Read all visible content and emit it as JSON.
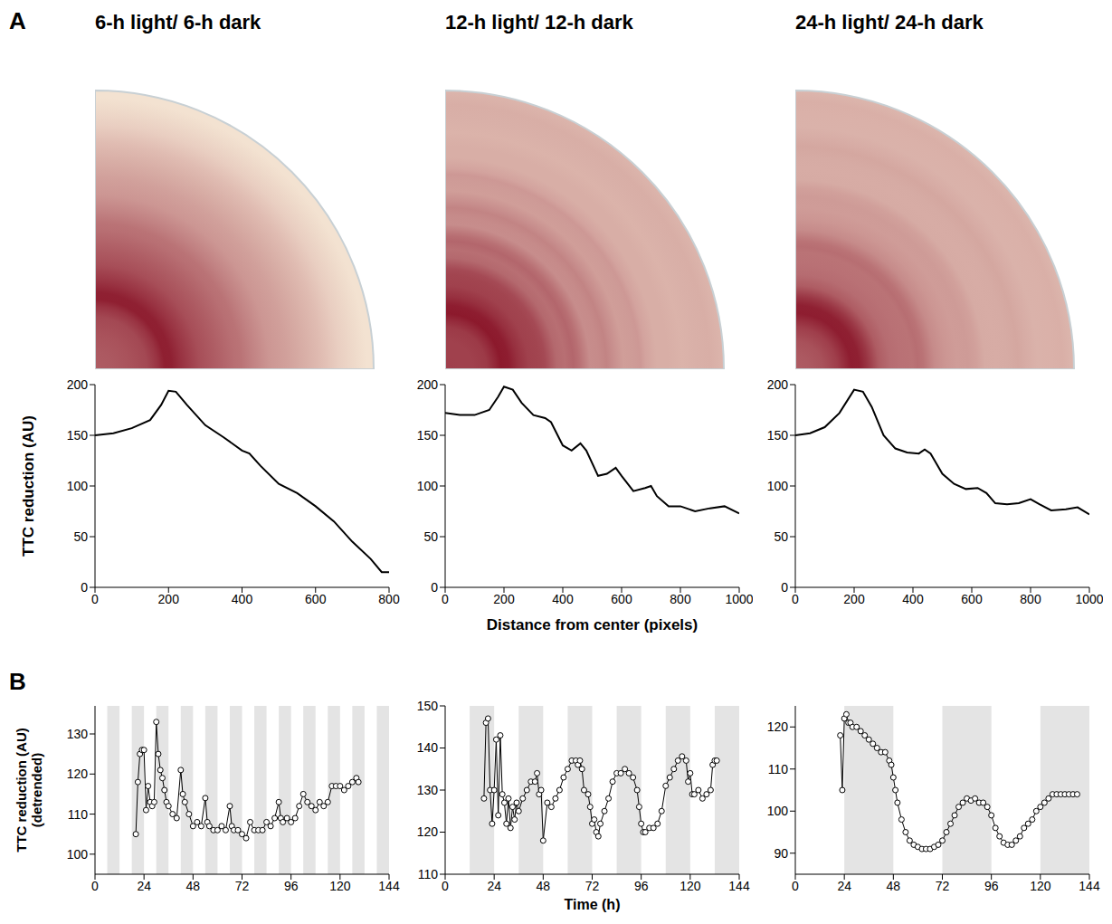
{
  "chart_data": [
    {
      "panel": "A",
      "type": "line",
      "title": "6-h light/ 6-h dark",
      "y_label": "TTC reduction (AU)",
      "xlim": [
        0,
        800
      ],
      "xticks": [
        0,
        200,
        400,
        600,
        800
      ],
      "ylim": [
        0,
        200
      ],
      "yticks": [
        0,
        50,
        100,
        150,
        200
      ],
      "series": [
        {
          "name": "6-h",
          "color": "#000000",
          "marker": "none",
          "line_style": "solid",
          "x": [
            0,
            50,
            100,
            150,
            180,
            200,
            220,
            250,
            300,
            350,
            400,
            420,
            450,
            500,
            550,
            600,
            650,
            700,
            750,
            780,
            800
          ],
          "values": [
            150,
            152,
            157,
            165,
            180,
            194,
            193,
            180,
            160,
            148,
            135,
            132,
            120,
            102,
            93,
            80,
            65,
            45,
            28,
            15,
            15
          ]
        }
      ]
    },
    {
      "panel": "A",
      "type": "line",
      "title": "12-h light/ 12-h dark",
      "x_label": "Distance from center (pixels)",
      "xlim": [
        0,
        1000
      ],
      "xticks": [
        0,
        200,
        400,
        600,
        800,
        1000
      ],
      "ylim": [
        0,
        200
      ],
      "yticks": [
        0,
        50,
        100,
        150,
        200
      ],
      "series": [
        {
          "name": "12-h",
          "color": "#000000",
          "marker": "none",
          "line_style": "solid",
          "x": [
            0,
            50,
            100,
            150,
            180,
            200,
            230,
            260,
            300,
            340,
            360,
            400,
            430,
            460,
            480,
            520,
            550,
            580,
            600,
            640,
            680,
            700,
            720,
            760,
            800,
            850,
            900,
            950,
            1000
          ],
          "values": [
            172,
            170,
            170,
            175,
            188,
            198,
            195,
            182,
            170,
            167,
            163,
            140,
            135,
            142,
            135,
            110,
            112,
            118,
            110,
            95,
            98,
            100,
            90,
            80,
            80,
            75,
            78,
            80,
            73
          ]
        }
      ]
    },
    {
      "panel": "A",
      "type": "line",
      "title": "24-h light/ 24-h dark",
      "xlim": [
        0,
        1000
      ],
      "xticks": [
        0,
        200,
        400,
        600,
        800,
        1000
      ],
      "ylim": [
        0,
        200
      ],
      "yticks": [
        0,
        50,
        100,
        150,
        200
      ],
      "series": [
        {
          "name": "24-h",
          "color": "#000000",
          "marker": "none",
          "line_style": "solid",
          "x": [
            0,
            50,
            100,
            150,
            200,
            230,
            260,
            300,
            340,
            380,
            420,
            440,
            460,
            500,
            540,
            580,
            620,
            650,
            680,
            720,
            760,
            800,
            830,
            870,
            920,
            960,
            1000
          ],
          "values": [
            150,
            152,
            158,
            172,
            195,
            193,
            178,
            150,
            137,
            133,
            132,
            136,
            132,
            112,
            102,
            97,
            98,
            93,
            83,
            82,
            83,
            87,
            82,
            76,
            77,
            79,
            72
          ]
        }
      ]
    },
    {
      "panel": "B",
      "type": "line",
      "y_label": [
        "TTC reduction (AU)",
        "(detrended)"
      ],
      "xlim": [
        0,
        144
      ],
      "xticks": [
        0,
        24,
        48,
        72,
        96,
        120,
        144
      ],
      "ylim": [
        95,
        137
      ],
      "yticks": [
        100,
        110,
        120,
        130
      ],
      "dark_periods": [
        [
          6,
          12
        ],
        [
          18,
          24
        ],
        [
          30,
          36
        ],
        [
          42,
          48
        ],
        [
          54,
          60
        ],
        [
          66,
          72
        ],
        [
          78,
          84
        ],
        [
          90,
          96
        ],
        [
          102,
          108
        ],
        [
          114,
          120
        ],
        [
          126,
          132
        ],
        [
          138,
          144
        ]
      ],
      "series": [
        {
          "name": "6-h",
          "color": "#000000",
          "marker": "o",
          "line_style": "solid",
          "x": [
            20,
            21,
            22,
            23,
            24,
            25,
            26,
            27,
            28,
            29,
            30,
            31,
            32,
            33,
            34,
            35,
            36,
            38,
            40,
            42,
            43,
            44,
            46,
            48,
            50,
            52,
            54,
            55,
            56,
            58,
            60,
            62,
            64,
            66,
            67,
            68,
            70,
            72,
            74,
            76,
            78,
            80,
            82,
            84,
            86,
            88,
            90,
            91,
            92,
            94,
            96,
            98,
            100,
            102,
            104,
            106,
            108,
            110,
            112,
            114,
            116,
            118,
            120,
            122,
            124,
            126,
            128,
            129
          ],
          "values": [
            105,
            118,
            125,
            126,
            126,
            111,
            117,
            113,
            112,
            113,
            133,
            125,
            121,
            119,
            116,
            113,
            112,
            110,
            109,
            121,
            115,
            113,
            110,
            107,
            108,
            107,
            114,
            108,
            107,
            106,
            106,
            107,
            106,
            112,
            107,
            106,
            106,
            105,
            104,
            108,
            106,
            106,
            106,
            108,
            107,
            109,
            113,
            109,
            108,
            109,
            108,
            109,
            112,
            115,
            113,
            112,
            111,
            113,
            112,
            113,
            117,
            117,
            117,
            116,
            117,
            118,
            119,
            118
          ]
        }
      ]
    },
    {
      "panel": "B",
      "type": "line",
      "x_label": "Time (h)",
      "xlim": [
        0,
        144
      ],
      "xticks": [
        0,
        24,
        48,
        72,
        96,
        120,
        144
      ],
      "ylim": [
        110,
        150
      ],
      "yticks": [
        110,
        120,
        130,
        140,
        150
      ],
      "dark_periods": [
        [
          12,
          24
        ],
        [
          36,
          48
        ],
        [
          60,
          72
        ],
        [
          84,
          96
        ],
        [
          108,
          120
        ],
        [
          132,
          144
        ]
      ],
      "series": [
        {
          "name": "12-h",
          "color": "#000000",
          "marker": "o",
          "line_style": "solid",
          "x": [
            19,
            20,
            21,
            22,
            23,
            24,
            25,
            26,
            27,
            28,
            29,
            30,
            31,
            32,
            33,
            34,
            35,
            36,
            38,
            40,
            42,
            44,
            45,
            46,
            47,
            48,
            50,
            52,
            54,
            56,
            58,
            60,
            62,
            64,
            65,
            66,
            67,
            68,
            70,
            71,
            72,
            73,
            74,
            75,
            76,
            78,
            80,
            82,
            84,
            86,
            88,
            90,
            92,
            94,
            95,
            96,
            97,
            98,
            100,
            102,
            104,
            106,
            108,
            110,
            112,
            114,
            116,
            118,
            119,
            120,
            121,
            122,
            124,
            126,
            128,
            130,
            131,
            132,
            133
          ],
          "values": [
            128,
            146,
            147,
            130,
            122,
            130,
            142,
            124,
            143,
            129,
            127,
            122,
            128,
            121,
            126,
            123,
            127,
            125,
            128,
            130,
            132,
            132,
            134,
            129,
            130,
            118,
            127,
            126,
            128,
            130,
            133,
            135,
            137,
            137,
            136,
            137,
            135,
            130,
            129,
            126,
            122,
            123,
            120,
            119,
            122,
            125,
            128,
            132,
            134,
            134,
            135,
            134,
            133,
            130,
            126,
            122,
            120,
            120,
            121,
            121,
            122,
            125,
            131,
            133,
            135,
            137,
            138,
            137,
            132,
            134,
            129,
            129,
            130,
            128,
            129,
            130,
            136,
            137,
            137
          ]
        }
      ]
    },
    {
      "panel": "B",
      "type": "line",
      "xlim": [
        0,
        144
      ],
      "xticks": [
        0,
        24,
        48,
        72,
        96,
        120,
        144
      ],
      "ylim": [
        85,
        125
      ],
      "yticks": [
        90,
        100,
        110,
        120
      ],
      "dark_periods": [
        [
          24,
          48
        ],
        [
          72,
          96
        ],
        [
          120,
          144
        ]
      ],
      "series": [
        {
          "name": "24-h",
          "color": "#000000",
          "marker": "o",
          "line_style": "solid",
          "x": [
            22,
            23,
            24,
            25,
            26,
            27,
            28,
            30,
            32,
            34,
            36,
            38,
            40,
            42,
            44,
            46,
            47,
            48,
            49,
            50,
            52,
            54,
            56,
            58,
            60,
            62,
            64,
            66,
            68,
            70,
            72,
            74,
            76,
            78,
            80,
            82,
            84,
            86,
            88,
            90,
            92,
            94,
            96,
            98,
            100,
            102,
            104,
            106,
            108,
            110,
            112,
            114,
            116,
            118,
            120,
            122,
            124,
            126,
            128,
            130,
            132,
            134,
            136,
            138
          ],
          "values": [
            118,
            105,
            122,
            123,
            121,
            121,
            120,
            120,
            119,
            118,
            117,
            116,
            115,
            114,
            114,
            112,
            111,
            108,
            105,
            102,
            98,
            95,
            93,
            92,
            91.5,
            91,
            91,
            91,
            91.5,
            92,
            93,
            95,
            97,
            99,
            101,
            102,
            103,
            102.5,
            103,
            102,
            102,
            101,
            99,
            96,
            94,
            92.5,
            92,
            92,
            93,
            94,
            96,
            97,
            98,
            100,
            101,
            102,
            103,
            104,
            104,
            104,
            104,
            104,
            104,
            104
          ]
        }
      ]
    }
  ]
}
